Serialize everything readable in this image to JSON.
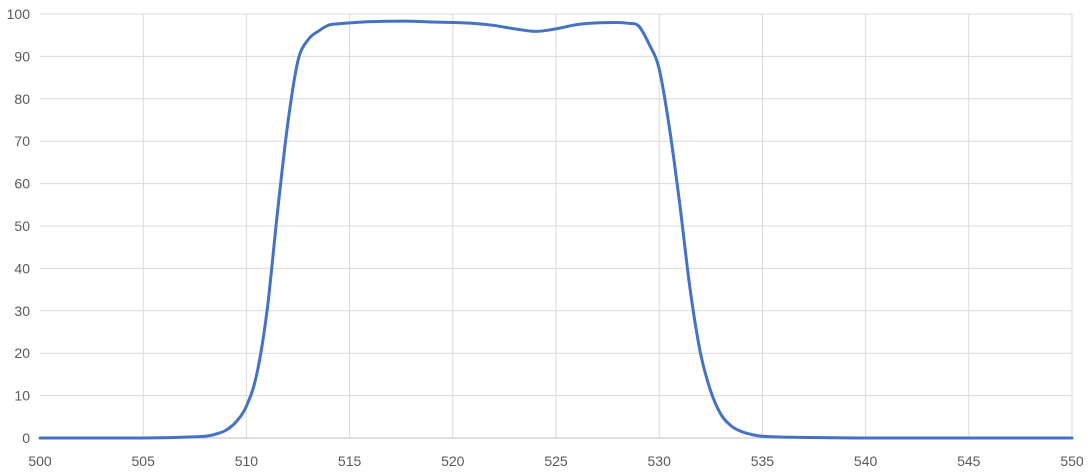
{
  "chart_data": {
    "type": "line",
    "title": "",
    "xlabel": "",
    "ylabel": "",
    "xlim": [
      500,
      550
    ],
    "ylim": [
      0,
      100
    ],
    "x_ticks": [
      "500",
      "505",
      "510",
      "515",
      "520",
      "525",
      "530",
      "535",
      "540",
      "545",
      "550"
    ],
    "y_ticks": [
      "0",
      "10",
      "20",
      "30",
      "40",
      "50",
      "60",
      "70",
      "80",
      "90",
      "100"
    ],
    "grid": true,
    "legend": "none",
    "series": [
      {
        "color": "#4472C4",
        "x": [
          500,
          505,
          507,
          508,
          508.5,
          509,
          509.5,
          510,
          510.5,
          511,
          511.5,
          512,
          512.5,
          513,
          513.5,
          514,
          514.5,
          515,
          516,
          517,
          518,
          519,
          520,
          521,
          522,
          523,
          524,
          525,
          526,
          527,
          528,
          528.5,
          529,
          529.5,
          530,
          530.5,
          531,
          531.5,
          532,
          532.5,
          533,
          533.5,
          534,
          534.5,
          535,
          536,
          538,
          540,
          545,
          550
        ],
        "y": [
          0,
          0,
          0.2,
          0.4,
          0.9,
          1.8,
          3.8,
          7.5,
          15,
          30,
          53,
          74,
          89,
          94,
          96,
          97.4,
          97.7,
          97.9,
          98.2,
          98.3,
          98.3,
          98.1,
          98.0,
          97.8,
          97.3,
          96.5,
          95.9,
          96.5,
          97.5,
          97.9,
          98.0,
          97.8,
          97.2,
          93,
          87,
          73,
          55,
          35,
          20,
          11,
          5.5,
          2.8,
          1.5,
          0.8,
          0.4,
          0.2,
          0.1,
          0,
          0,
          0
        ]
      }
    ]
  }
}
